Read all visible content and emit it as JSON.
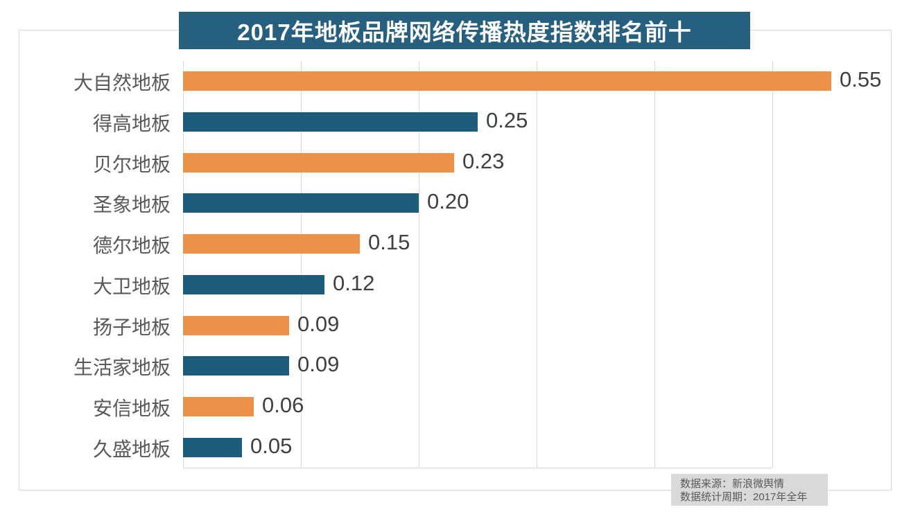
{
  "title": "2017年地板品牌网络传播热度指数排名前十",
  "source_note": {
    "line1": "数据来源：新浪微舆情",
    "line2": "数据统计周期：2017年全年"
  },
  "colors": {
    "title_bg": "#27607F",
    "bar_orange": "#EE9148",
    "bar_blue": "#1F5B7B",
    "grid": "#D9D9D9",
    "category_text": "#595959",
    "value_text": "#404040",
    "note_bg": "#D9D9D9",
    "note_text": "#595959"
  },
  "chart_data": {
    "type": "bar",
    "orientation": "horizontal",
    "title": "2017年地板品牌网络传播热度指数排名前十",
    "categories": [
      "大自然地板",
      "得高地板",
      "贝尔地板",
      "圣象地板",
      "德尔地板",
      "大卫地板",
      "扬子地板",
      "生活家地板",
      "安信地板",
      "久盛地板"
    ],
    "values": [
      0.55,
      0.25,
      0.23,
      0.2,
      0.15,
      0.12,
      0.09,
      0.09,
      0.06,
      0.05
    ],
    "values_display": [
      "0.55",
      "0.25",
      "0.23",
      "0.20",
      "0.15",
      "0.12",
      "0.09",
      "0.09",
      "0.06",
      "0.05"
    ],
    "bar_colors": [
      "#EE9148",
      "#1F5B7B",
      "#EE9148",
      "#1F5B7B",
      "#EE9148",
      "#1F5B7B",
      "#EE9148",
      "#1F5B7B",
      "#EE9148",
      "#1F5B7B"
    ],
    "xlabel": "",
    "ylabel": "",
    "xlim": [
      0,
      0.5
    ],
    "grid_ticks": [
      0,
      0.1,
      0.2,
      0.3,
      0.4,
      0.5
    ],
    "grid": true,
    "legend": false,
    "data_labels": true
  }
}
